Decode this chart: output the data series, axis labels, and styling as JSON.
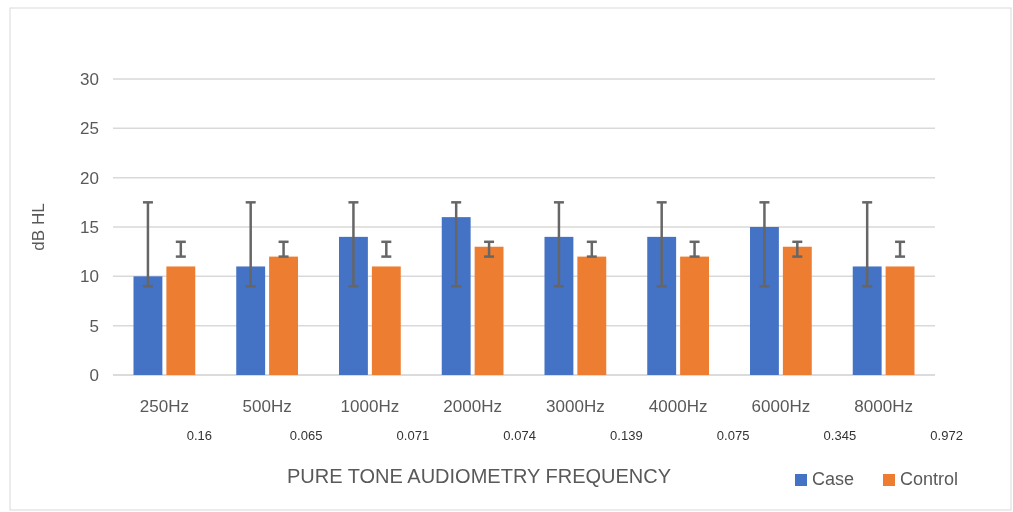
{
  "chart_data": {
    "type": "bar",
    "xlabel": "PURE TONE AUDIOMETRY FREQUENCY",
    "ylabel": "dB HL",
    "categories": [
      "250Hz",
      "500Hz",
      "1000Hz",
      "2000Hz",
      "3000Hz",
      "4000Hz",
      "6000Hz",
      "8000Hz"
    ],
    "series": [
      {
        "name": "Case",
        "color": "#4472c4",
        "values": [
          10,
          11,
          14,
          16,
          14,
          14,
          15,
          11
        ],
        "errors": [
          [
            9,
            17.5
          ],
          [
            9,
            17.5
          ],
          [
            9,
            17.5
          ],
          [
            9,
            17.5
          ],
          [
            9,
            17.5
          ],
          [
            9,
            17.5
          ],
          [
            9,
            17.5
          ],
          [
            9,
            17.5
          ]
        ]
      },
      {
        "name": "Control",
        "color": "#ed7d31",
        "values": [
          11,
          12,
          11,
          13,
          12,
          12,
          13,
          11
        ],
        "errors": [
          [
            12,
            13.5
          ],
          [
            12,
            13.5
          ],
          [
            12,
            13.5
          ],
          [
            12,
            13.5
          ],
          [
            12,
            13.5
          ],
          [
            12,
            13.5
          ],
          [
            12,
            13.5
          ],
          [
            12,
            13.5
          ]
        ]
      }
    ],
    "annotations": [
      "0.16",
      "0.065",
      "0.071",
      "0.074",
      "0.139",
      "0.075",
      "0.345",
      "0.972"
    ],
    "ylim": [
      0,
      30
    ],
    "yticks": [
      0,
      5,
      10,
      15,
      20,
      25,
      30
    ],
    "grid": "y",
    "legend": "bottom right"
  }
}
